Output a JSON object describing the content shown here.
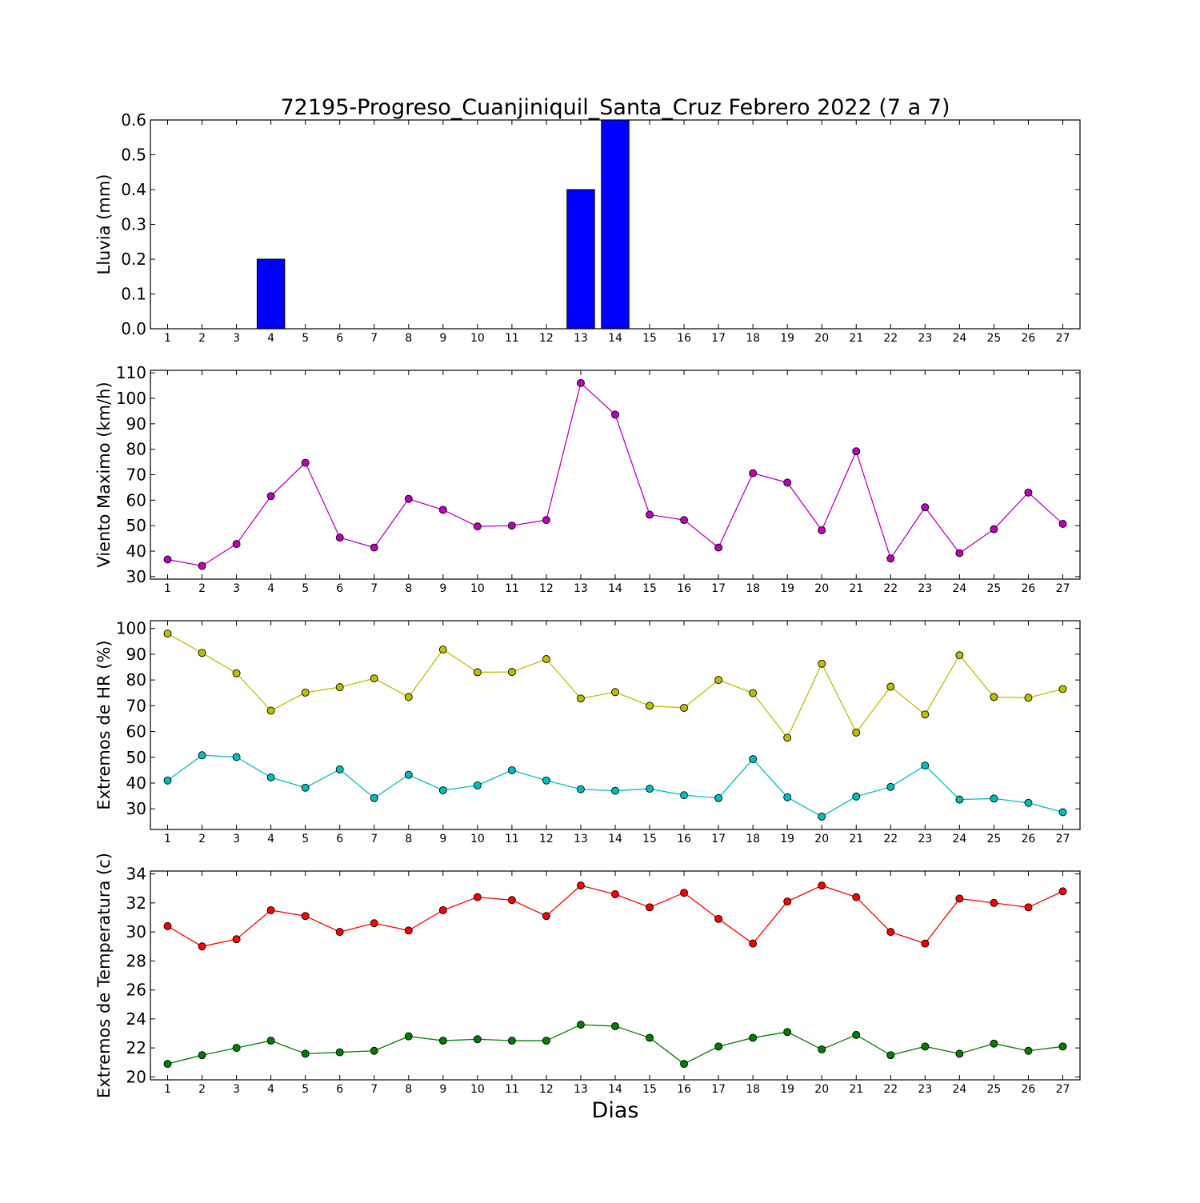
{
  "chart_data": {
    "title": "72195-Progreso_Cuanjiniquil_Santa_Cruz Febrero 2022  (7 a 7)",
    "xlabel": "Dias",
    "days": [
      1,
      2,
      3,
      4,
      5,
      6,
      7,
      8,
      9,
      10,
      11,
      12,
      13,
      14,
      15,
      16,
      17,
      18,
      19,
      20,
      21,
      22,
      23,
      24,
      25,
      26,
      27
    ],
    "panels": [
      {
        "type": "bar",
        "ylabel": "Lluvia (mm)",
        "ylim": [
          0,
          0.6
        ],
        "yticks": [
          "0.0",
          "0.1",
          "0.2",
          "0.3",
          "0.4",
          "0.5",
          "0.6"
        ],
        "yticks_values": [
          0,
          0.1,
          0.2,
          0.3,
          0.4,
          0.5,
          0.6
        ],
        "series": [
          {
            "color": "#0000ff",
            "values": [
              0,
              0,
              0,
              0.2,
              0,
              0,
              0,
              0,
              0,
              0,
              0,
              0,
              0.4,
              0.6,
              0,
              0,
              0,
              0,
              0,
              0,
              0,
              0,
              0,
              0,
              0,
              0,
              0
            ]
          }
        ]
      },
      {
        "type": "line",
        "ylabel": "Viento Maximo (km/h)",
        "ylim": [
          29,
          111
        ],
        "yticks": [
          "30",
          "40",
          "50",
          "60",
          "70",
          "80",
          "90",
          "100",
          "110"
        ],
        "yticks_values": [
          30,
          40,
          50,
          60,
          70,
          80,
          90,
          100,
          110
        ],
        "series": [
          {
            "color": "#bf00bf",
            "values": [
              36.7,
              34.2,
              42.8,
              61.6,
              74.7,
              45.3,
              41.4,
              60.5,
              56.2,
              49.7,
              50.0,
              52.2,
              106.0,
              93.6,
              54.3,
              52.2,
              41.4,
              70.6,
              66.9,
              48.2,
              79.2,
              37.1,
              57.2,
              39.2,
              48.6,
              63.0,
              50.7
            ]
          }
        ]
      },
      {
        "type": "line",
        "ylabel": "Extremos de HR (%)",
        "ylim": [
          22,
          103
        ],
        "yticks": [
          "30",
          "40",
          "50",
          "60",
          "70",
          "80",
          "90",
          "100"
        ],
        "yticks_values": [
          30,
          40,
          50,
          60,
          70,
          80,
          90,
          100
        ],
        "series": [
          {
            "color": "#bfbf00",
            "values": [
              98,
              90.5,
              82.6,
              68.1,
              75.1,
              77.2,
              80.6,
              73.4,
              91.8,
              83.0,
              83.1,
              88.1,
              72.8,
              75.3,
              70.0,
              69.2,
              80.0,
              74.9,
              57.6,
              86.3,
              59.6,
              77.4,
              66.6,
              89.6,
              73.4,
              73.1,
              76.5
            ]
          },
          {
            "color": "#00bfbf",
            "values": [
              41.0,
              50.8,
              50.1,
              42.2,
              38.2,
              45.3,
              34.2,
              43.2,
              37.2,
              39.1,
              45.0,
              41.0,
              37.6,
              37.0,
              37.8,
              35.3,
              34.2,
              49.3,
              34.5,
              27.0,
              34.8,
              38.5,
              46.8,
              33.6,
              34.0,
              32.3,
              28.7
            ]
          }
        ]
      },
      {
        "type": "line",
        "ylabel": "Extremos de Temperatura (c)",
        "ylim": [
          19.8,
          34.2
        ],
        "yticks": [
          "20",
          "22",
          "24",
          "26",
          "28",
          "30",
          "32",
          "34"
        ],
        "yticks_values": [
          20,
          22,
          24,
          26,
          28,
          30,
          32,
          34
        ],
        "series": [
          {
            "color": "#ff0000",
            "values": [
              30.4,
              29.0,
              29.5,
              31.5,
              31.1,
              30.0,
              30.6,
              30.1,
              31.5,
              32.4,
              32.2,
              31.1,
              33.2,
              32.6,
              31.7,
              32.7,
              30.9,
              29.2,
              32.1,
              33.2,
              32.4,
              30.0,
              29.2,
              32.3,
              32.0,
              31.7,
              32.8
            ]
          },
          {
            "color": "#008000",
            "values": [
              20.9,
              21.5,
              22.0,
              22.5,
              21.6,
              21.7,
              21.8,
              22.8,
              22.5,
              22.6,
              22.5,
              22.5,
              23.6,
              23.5,
              22.7,
              20.9,
              22.1,
              22.7,
              23.1,
              21.9,
              22.9,
              21.5,
              22.1,
              21.6,
              22.3,
              21.8,
              22.1
            ]
          }
        ]
      }
    ]
  }
}
